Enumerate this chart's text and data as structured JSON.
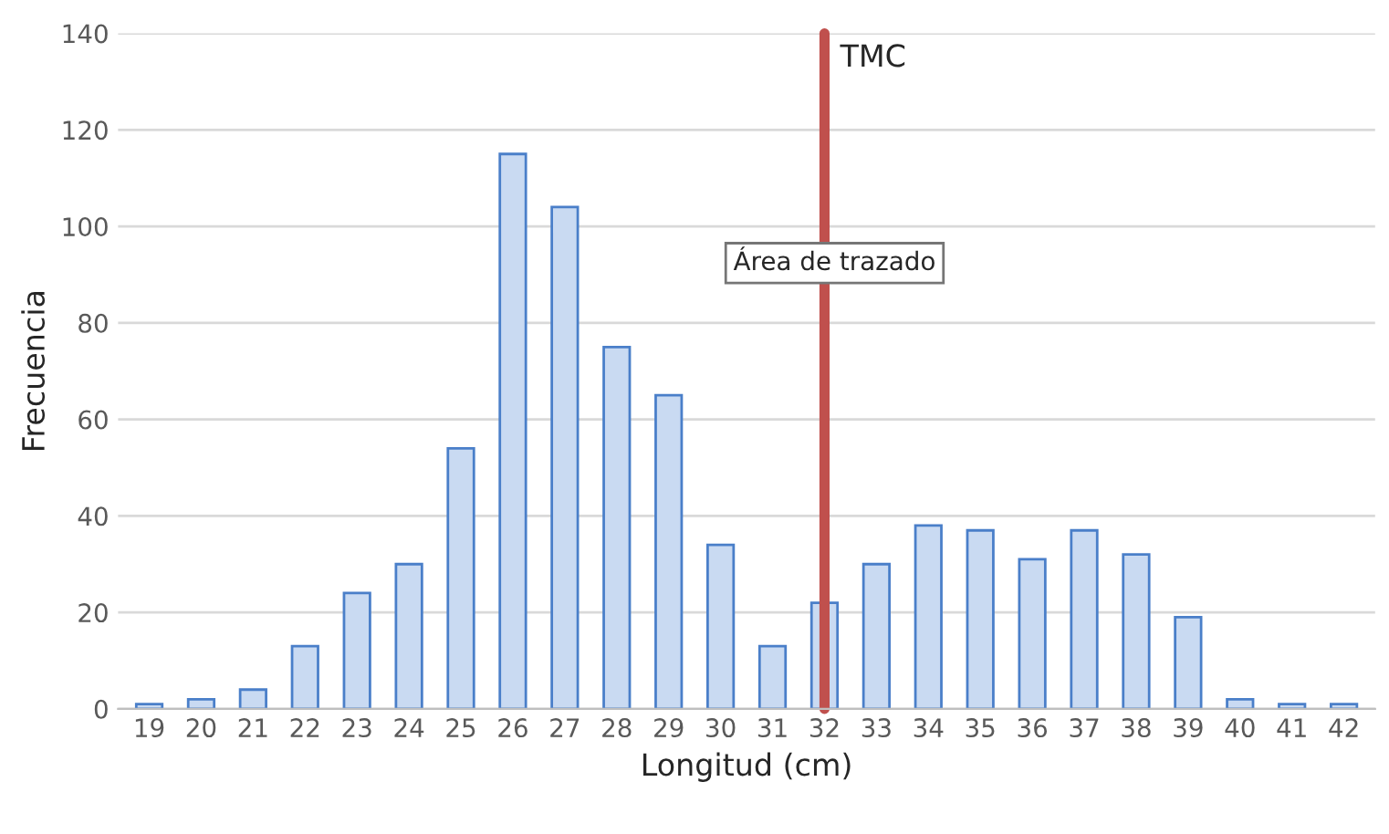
{
  "chart_data": {
    "type": "bar",
    "xlabel": "Longitud (cm)",
    "ylabel": "Frecuencia",
    "categories": [
      "19",
      "20",
      "21",
      "22",
      "23",
      "24",
      "25",
      "26",
      "27",
      "28",
      "29",
      "30",
      "31",
      "32",
      "33",
      "34",
      "35",
      "36",
      "37",
      "38",
      "39",
      "40",
      "41",
      "42"
    ],
    "values": [
      1,
      2,
      4,
      13,
      24,
      30,
      54,
      115,
      104,
      75,
      65,
      34,
      13,
      22,
      30,
      38,
      37,
      31,
      37,
      32,
      19,
      2,
      1,
      1
    ],
    "color": "#c9daf2",
    "ylim": [
      0,
      140
    ],
    "yticks": [
      0,
      20,
      40,
      60,
      80,
      100,
      120,
      140
    ],
    "grid": "y",
    "ref_lines": [
      {
        "axis": "x",
        "value": "32",
        "label": "TMC",
        "color": "#c0504d"
      }
    ],
    "annotations": [
      "Área de trazado"
    ]
  }
}
